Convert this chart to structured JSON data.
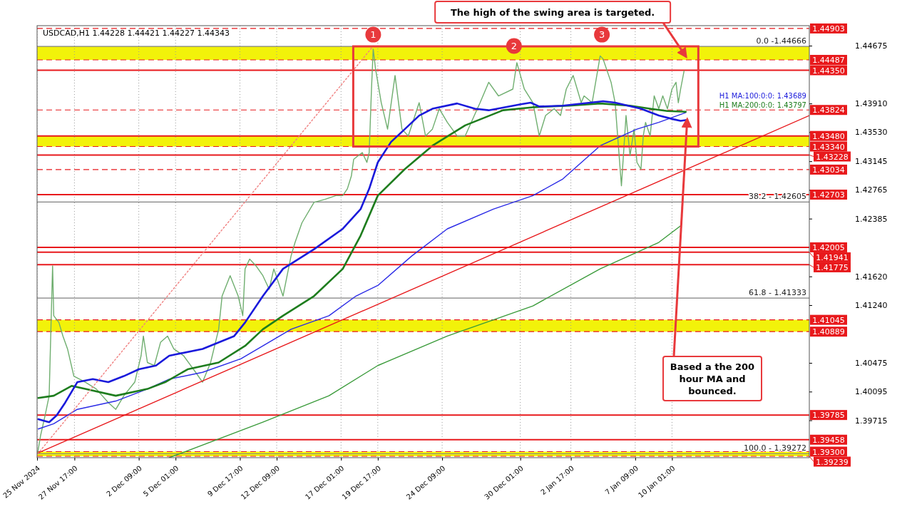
{
  "chart_data": {
    "type": "line",
    "title": "USDCAD,H1  1.44228 1.44421 1.44227 1.44343",
    "xlim": [
      "2024-11-25T00:00",
      "2025-01-20T00:00"
    ],
    "xticks": [
      {
        "value": "2024-11-25T00:00",
        "label": "25 Nov 2024"
      },
      {
        "value": "2024-11-27T17:00",
        "label": "27 Nov 17:00"
      },
      {
        "value": "2024-12-02T09:00",
        "label": "2 Dec 09:00"
      },
      {
        "value": "2024-12-05T01:00",
        "label": "5 Dec 01:00"
      },
      {
        "value": "2024-12-09T17:00",
        "label": "9 Dec 17:00"
      },
      {
        "value": "2024-12-12T09:00",
        "label": "12 Dec 09:00"
      },
      {
        "value": "2024-12-17T01:00",
        "label": "17 Dec 01:00"
      },
      {
        "value": "2024-12-19T17:00",
        "label": "19 Dec 17:00"
      },
      {
        "value": "2024-12-24T09:00",
        "label": "24 Dec 09:00"
      },
      {
        "value": "2024-12-30T01:00",
        "label": "30 Dec 01:00"
      },
      {
        "value": "2025-01-02T17:00",
        "label": "2 Jan 17:00"
      },
      {
        "value": "2025-01-07T09:00",
        "label": "7 Jan 09:00"
      },
      {
        "value": "2025-01-10T01:00",
        "label": "10 Jan 01:00"
      }
    ],
    "ylim": [
      1.3922,
      1.4494
    ],
    "yticks": [
      1.44675,
      {
        "value": 1.4391,
        "label": "1.43910"
      },
      {
        "value": 1.4353,
        "label": "1.43530"
      },
      1.43145,
      1.42765,
      1.42385,
      {
        "value": 1.4162,
        "label": "1.41620"
      },
      {
        "value": 1.4124,
        "label": "1.41240"
      },
      1.40475,
      1.40095,
      1.39715
    ],
    "grid": "x",
    "series": [
      {
        "color": "#6fae6f",
        "x": [
          "2024-11-25T01:00",
          "2024-11-25T06:00",
          "2024-11-25T14:00",
          "2024-11-25T21:00",
          "2024-11-26T03:00",
          "2024-11-26T05:00",
          "2024-11-26T14:00",
          "2024-11-26T21:00",
          "2024-11-27T05:00",
          "2024-11-27T16:00",
          "2024-11-28T12:00",
          "2024-11-29T07:00",
          "2024-11-30T04:00",
          "2024-11-30T17:00",
          "2024-12-01T07:00",
          "2024-12-02T02:00",
          "2024-12-02T13:00",
          "2024-12-02T17:00",
          "2024-12-03T00:00",
          "2024-12-03T12:00",
          "2024-12-03T23:00",
          "2024-12-04T11:00",
          "2024-12-04T22:00",
          "2024-12-05T15:00",
          "2024-12-06T12:00",
          "2024-12-07T00:00",
          "2024-12-07T14:00",
          "2024-12-08T04:00",
          "2024-12-08T10:00",
          "2024-12-09T00:00",
          "2024-12-09T14:00",
          "2024-12-09T22:00",
          "2024-12-10T02:00",
          "2024-12-10T10:00",
          "2024-12-10T21:00",
          "2024-12-11T09:00",
          "2024-12-11T20:00",
          "2024-12-12T04:00",
          "2024-12-12T20:00",
          "2024-12-13T10:00",
          "2024-12-13T17:00",
          "2024-12-14T05:00",
          "2024-12-15T02:00",
          "2024-12-15T21:00",
          "2024-12-16T16:00",
          "2024-12-17T04:00",
          "2024-12-17T12:00",
          "2024-12-17T19:00",
          "2024-12-17T23:00",
          "2024-12-18T07:00",
          "2024-12-18T14:00",
          "2024-12-18T22:00",
          "2024-12-19T02:00",
          "2024-12-19T06:00",
          "2024-12-19T09:00",
          "2024-12-19T13:00",
          "2024-12-19T23:00",
          "2024-12-20T10:00",
          "2024-12-20T23:00",
          "2024-12-21T11:00",
          "2024-12-21T22:00",
          "2024-12-22T17:00",
          "2024-12-23T04:00",
          "2024-12-23T16:00",
          "2024-12-24T04:00",
          "2024-12-24T18:00",
          "2024-12-25T11:00",
          "2024-12-26T01:00",
          "2024-12-27T03:00",
          "2024-12-27T18:00",
          "2024-12-28T11:00",
          "2024-12-29T12:00",
          "2024-12-29T19:00",
          "2024-12-30T08:00",
          "2024-12-30T23:00",
          "2024-12-31T10:00",
          "2024-12-31T21:00",
          "2025-01-01T12:00",
          "2025-01-01T23:00",
          "2025-01-02T09:00",
          "2025-01-02T21:00",
          "2025-01-03T11:00",
          "2025-01-03T16:00",
          "2025-01-04T06:00",
          "2025-01-04T20:00",
          "2025-01-05T01:00",
          "2025-01-05T15:00",
          "2025-01-05T22:00",
          "2025-01-06T09:00",
          "2025-01-06T17:00",
          "2025-01-07T00:00",
          "2025-01-07T07:00",
          "2025-01-07T12:00",
          "2025-01-07T19:00",
          "2025-01-07T23:00",
          "2025-01-08T03:00",
          "2025-01-08T11:00",
          "2025-01-08T18:00",
          "2025-01-09T02:00",
          "2025-01-09T09:00",
          "2025-01-09T17:00",
          "2025-01-10T01:00",
          "2025-01-10T08:00",
          "2025-01-10T12:00",
          "2025-01-10T16:00",
          "2025-01-10T22:00"
        ],
        "values": [
          1.3928,
          1.3951,
          1.3978,
          1.4004,
          1.4176,
          1.411,
          1.4101,
          1.4083,
          1.4066,
          1.403,
          1.4022,
          1.4013,
          1.3995,
          1.3986,
          1.4004,
          1.4022,
          1.4057,
          1.4083,
          1.4048,
          1.4044,
          1.4075,
          1.4083,
          1.4066,
          1.4057,
          1.4035,
          1.4022,
          1.4048,
          1.4092,
          1.4136,
          1.4163,
          1.4136,
          1.411,
          1.4172,
          1.4185,
          1.4176,
          1.4163,
          1.4145,
          1.4172,
          1.4136,
          1.4189,
          1.4207,
          1.4233,
          1.426,
          1.4264,
          1.4269,
          1.4269,
          1.4278,
          1.4295,
          1.4317,
          1.4322,
          1.4326,
          1.4313,
          1.4326,
          1.441,
          1.4463,
          1.4437,
          1.4392,
          1.4357,
          1.4428,
          1.4357,
          1.4348,
          1.4392,
          1.4348,
          1.4357,
          1.4384,
          1.4366,
          1.4348,
          1.4348,
          1.4392,
          1.4419,
          1.4401,
          1.441,
          1.4445,
          1.441,
          1.4392,
          1.4348,
          1.4375,
          1.4384,
          1.4375,
          1.441,
          1.4428,
          1.4392,
          1.4401,
          1.4392,
          1.4454,
          1.445,
          1.4419,
          1.4392,
          1.4282,
          1.4375,
          1.4322,
          1.4357,
          1.4313,
          1.4304,
          1.4348,
          1.4366,
          1.4348,
          1.4401,
          1.4384,
          1.4401,
          1.4384,
          1.441,
          1.4419,
          1.4392,
          1.441,
          1.4434
        ]
      },
      {
        "color": "#3b9b3b",
        "x": [
          "2024-12-04T14:00",
          "2024-12-11T09:00",
          "2024-12-16T04:00",
          "2024-12-19T17:00",
          "2024-12-24T18:00",
          "2024-12-30T23:00",
          "2025-01-04T20:00",
          "2025-01-09T02:00",
          "2025-01-10T16:00"
        ],
        "values": [
          1.3922,
          1.3969,
          1.4004,
          1.4044,
          1.4083,
          1.4123,
          1.4172,
          1.4207,
          1.4229
        ]
      },
      {
        "color": "#2b2be6",
        "x": [
          "2024-11-25T02:00",
          "2024-11-26T05:00",
          "2024-11-27T22:00",
          "2024-11-30T17:00",
          "2024-12-03T00:00",
          "2024-12-04T14:00",
          "2024-12-07T00:00",
          "2024-12-09T19:00",
          "2024-12-11T09:00",
          "2024-12-13T10:00",
          "2024-12-16T04:00",
          "2024-12-18T03:00",
          "2024-12-19T17:00",
          "2024-12-22T04:00",
          "2024-12-24T18:00",
          "2024-12-28T02:00",
          "2024-12-30T23:00",
          "2025-01-02T03:00",
          "2025-01-04T20:00",
          "2025-01-07T12:00",
          "2025-01-09T02:00",
          "2025-01-11T01:00"
        ],
        "values": [
          1.396,
          1.3967,
          1.3986,
          1.3997,
          1.4013,
          1.4026,
          1.4035,
          1.4053,
          1.407,
          1.4092,
          1.411,
          1.4136,
          1.415,
          1.4189,
          1.4225,
          1.4251,
          1.4269,
          1.4291,
          1.4335,
          1.4357,
          1.4366,
          1.4379
        ]
      },
      {
        "name": "H1 MA:200:0:0: 1.43797",
        "color": "#1e7d1e",
        "x": [
          "2024-11-25T02:00",
          "2024-11-26T05:00",
          "2024-11-27T12:00",
          "2024-11-28T12:00",
          "2024-11-30T17:00",
          "2024-12-03T00:00",
          "2024-12-04T07:00",
          "2024-12-05T22:00",
          "2024-12-08T04:00",
          "2024-12-10T02:00",
          "2024-12-11T09:00",
          "2024-12-12T20:00",
          "2024-12-15T02:00",
          "2024-12-17T04:00",
          "2024-12-18T11:00",
          "2024-12-19T17:00",
          "2024-12-21T16:00",
          "2024-12-23T16:00",
          "2024-12-26T01:00",
          "2024-12-28T19:00",
          "2024-12-30T23:00",
          "2025-01-02T14:00",
          "2025-01-04T20:00",
          "2025-01-07T00:00",
          "2025-01-08T11:00",
          "2025-01-09T17:00",
          "2025-01-11T01:00"
        ],
        "values": [
          1.4001,
          1.4004,
          1.4017,
          1.4013,
          1.4004,
          1.4013,
          1.4022,
          1.4039,
          1.4048,
          1.407,
          1.4092,
          1.411,
          1.4136,
          1.4172,
          1.4216,
          1.4269,
          1.4304,
          1.4335,
          1.4362,
          1.4382,
          1.4386,
          1.4388,
          1.4391,
          1.4388,
          1.4384,
          1.4381,
          1.438
        ]
      },
      {
        "name": "H1 MA:100:0:0: 1.43689",
        "color": "#1a1adb",
        "x": [
          "2024-11-25T02:00",
          "2024-11-25T21:00",
          "2024-11-26T10:00",
          "2024-11-27T01:00",
          "2024-11-27T22:00",
          "2024-11-29T01:00",
          "2024-11-30T04:00",
          "2024-12-01T07:00",
          "2024-12-02T09:00",
          "2024-12-03T15:00",
          "2024-12-04T14:00",
          "2024-12-07T00:00",
          "2024-12-09T07:00",
          "2024-12-10T02:00",
          "2024-12-11T09:00",
          "2024-12-12T20:00",
          "2024-12-15T02:00",
          "2024-12-17T04:00",
          "2024-12-18T11:00",
          "2024-12-19T02:00",
          "2024-12-19T17:00",
          "2024-12-20T16:00",
          "2024-12-21T16:00",
          "2024-12-22T17:00",
          "2024-12-23T16:00",
          "2024-12-25T11:00",
          "2024-12-26T18:00",
          "2024-12-27T18:00",
          "2024-12-30T02:00",
          "2024-12-30T19:00",
          "2024-12-31T10:00",
          "2025-01-02T03:00",
          "2025-01-05T01:00",
          "2025-01-05T22:00",
          "2025-01-07T19:00",
          "2025-01-09T02:00",
          "2025-01-10T04:00",
          "2025-01-10T16:00",
          "2025-01-11T01:00"
        ],
        "values": [
          1.3973,
          1.3969,
          1.3978,
          1.3995,
          1.4022,
          1.4026,
          1.4022,
          1.403,
          1.4039,
          1.4044,
          1.4057,
          1.4066,
          1.4083,
          1.4101,
          1.4136,
          1.4172,
          1.4198,
          1.4225,
          1.4251,
          1.4278,
          1.4313,
          1.434,
          1.4357,
          1.4375,
          1.4384,
          1.4391,
          1.4384,
          1.4382,
          1.439,
          1.4392,
          1.4387,
          1.4388,
          1.4394,
          1.4392,
          1.4384,
          1.4375,
          1.437,
          1.4368,
          1.4369
        ]
      },
      {
        "color": "#e8191c",
        "x": [
          "2024-11-25T01:00",
          "2025-01-20T00:00"
        ],
        "values": [
          1.3928,
          1.4375
        ]
      },
      {
        "color": "#f08080",
        "line_style": "dotted",
        "x": [
          "2024-11-25T01:00",
          "2024-12-19T09:00"
        ],
        "values": [
          1.3927,
          1.4467
        ]
      }
    ],
    "bands": [
      {
        "axis": "y",
        "from": 1.44487,
        "to": 1.44666,
        "color": "#f2f20a"
      },
      {
        "axis": "y",
        "from": 1.4334,
        "to": 1.4348,
        "color": "#f2f20a"
      },
      {
        "axis": "y",
        "from": 1.40889,
        "to": 1.41045,
        "color": "#f2f20a"
      },
      {
        "axis": "y",
        "from": 1.39239,
        "to": 1.393,
        "color": "#f2f20a"
      }
    ],
    "ref_lines": [
      {
        "axis": "y",
        "value": 1.44903,
        "label": "1.44903",
        "color": "#e8191c",
        "line_style": "dashed"
      },
      {
        "axis": "y",
        "value": 1.44666,
        "color": "#808080",
        "line_style": "solid"
      },
      {
        "axis": "y",
        "value": 1.44487,
        "label": "1.44487",
        "color": "#e8191c",
        "line_style": "dashed"
      },
      {
        "axis": "y",
        "value": 1.4435,
        "label": "1.44350",
        "color": "#e8191c",
        "line_style": "solid"
      },
      {
        "axis": "y",
        "value": 1.43824,
        "label": "1.43824",
        "color": "#e8191c",
        "line_style": "dashed"
      },
      {
        "axis": "y",
        "value": 1.4348,
        "label": "1.43480",
        "color": "#e8191c",
        "line_style": "solid"
      },
      {
        "axis": "y",
        "value": 1.4334,
        "label": "1.43340",
        "color": "#e8191c",
        "line_style": "dashed"
      },
      {
        "axis": "y",
        "value": 1.43228,
        "label": "1.43228",
        "color": "#e8191c",
        "line_style": "solid"
      },
      {
        "axis": "y",
        "value": 1.43034,
        "label": "1.43034",
        "color": "#e8191c",
        "line_style": "dashed"
      },
      {
        "axis": "y",
        "value": 1.42703,
        "label": "1.42703",
        "color": "#e8191c",
        "line_style": "solid"
      },
      {
        "axis": "y",
        "value": 1.42605,
        "color": "#808080",
        "line_style": "solid"
      },
      {
        "axis": "y",
        "value": 1.42005,
        "label": "1.42005",
        "color": "#e8191c",
        "line_style": "solid"
      },
      {
        "axis": "y",
        "value": 1.41941,
        "label": "1.41941",
        "color": "#e8191c",
        "line_style": "solid"
      },
      {
        "axis": "y",
        "value": 1.41775,
        "label": "1.41775",
        "color": "#e8191c",
        "line_style": "solid"
      },
      {
        "axis": "y",
        "value": 1.41333,
        "color": "#808080",
        "line_style": "solid"
      },
      {
        "axis": "y",
        "value": 1.41045,
        "label": "1.41045",
        "color": "#e8191c",
        "line_style": "dashed"
      },
      {
        "axis": "y",
        "value": 1.40889,
        "label": "1.40889",
        "color": "#e8191c",
        "line_style": "dashed"
      },
      {
        "axis": "y",
        "value": 1.39785,
        "label": "1.39785",
        "color": "#e8191c",
        "line_style": "solid"
      },
      {
        "axis": "y",
        "value": 1.39458,
        "label": "1.39458",
        "color": "#e8191c",
        "line_style": "solid"
      },
      {
        "axis": "y",
        "value": 1.393,
        "label": "1.39300",
        "color": "#e8191c",
        "line_style": "dashed"
      },
      {
        "axis": "y",
        "value": 1.39272,
        "color": "#808080",
        "line_style": "solid"
      },
      {
        "axis": "y",
        "value": 1.39239,
        "label": "1.39239",
        "color": "#e8191c",
        "line_style": "dashed"
      }
    ],
    "annotations": [
      {
        "text": "1",
        "x": "2024-12-19T09:00",
        "y": 1.4467
      },
      {
        "text": "2",
        "x": "2024-12-29T14:00",
        "y": 1.4452
      },
      {
        "text": "3",
        "x": "2025-01-04T23:00",
        "y": 1.4467
      },
      {
        "text": "The high of the swing area is targeted.",
        "x": "2025-01-10T23:00",
        "y": 1.445
      },
      {
        "text": "Based a the 200 hour MA and bounced.",
        "x": "2025-01-11T01:00",
        "y": 1.4373
      },
      {
        "text": "0.0 -1.44666",
        "x": "2025-01-20T00:00",
        "y": 1.44666
      },
      {
        "text": "38.2 - 1.42605",
        "x": "2025-01-20T00:00",
        "y": 1.42605
      },
      {
        "text": "61.8 - 1.41333",
        "x": "2025-01-20T00:00",
        "y": 1.41333
      },
      {
        "text": "100.0 - 1.39272",
        "x": "2025-01-20T00:00",
        "y": 1.39272
      }
    ]
  }
}
